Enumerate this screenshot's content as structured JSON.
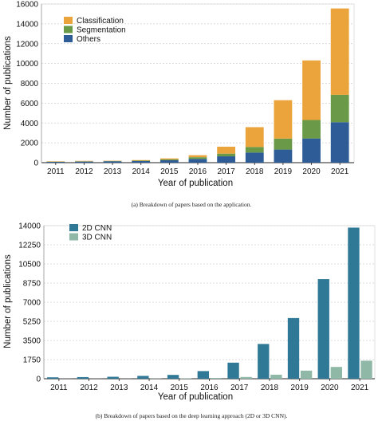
{
  "chart_data": [
    {
      "type": "bar",
      "stacked": true,
      "categories": [
        "2011",
        "2012",
        "2013",
        "2014",
        "2015",
        "2016",
        "2017",
        "2018",
        "2019",
        "2020",
        "2021"
      ],
      "series": [
        {
          "name": "Others",
          "color": "#2d5c96",
          "values": [
            80,
            110,
            140,
            160,
            240,
            380,
            640,
            1020,
            1320,
            2440,
            4080
          ]
        },
        {
          "name": "Segmentation",
          "color": "#6a9a48",
          "values": [
            20,
            25,
            30,
            40,
            90,
            170,
            270,
            560,
            1110,
            1860,
            2760
          ]
        },
        {
          "name": "Classification",
          "color": "#eba33c",
          "values": [
            40,
            45,
            30,
            60,
            100,
            200,
            700,
            2000,
            3870,
            6010,
            8710
          ]
        }
      ],
      "xlabel": "Year of publication",
      "ylabel": "Number of publications",
      "yticks": [
        0,
        2000,
        4000,
        6000,
        8000,
        10000,
        12000,
        14000,
        16000
      ],
      "ylim": [
        0,
        16000
      ],
      "grid": true,
      "legend": "top-left",
      "legend_order": [
        "Classification",
        "Segmentation",
        "Others"
      ],
      "caption": "(a) Breakdown of papers based on the application."
    },
    {
      "type": "bar",
      "stacked": false,
      "categories": [
        "2011",
        "2012",
        "2013",
        "2014",
        "2015",
        "2016",
        "2017",
        "2018",
        "2019",
        "2020",
        "2021"
      ],
      "series": [
        {
          "name": "2D CNN",
          "color": "#2f7896",
          "values": [
            130,
            150,
            180,
            260,
            350,
            700,
            1470,
            3180,
            5550,
            9110,
            13820
          ]
        },
        {
          "name": "3D CNN",
          "color": "#8fb8a6",
          "values": [
            10,
            10,
            10,
            20,
            30,
            70,
            160,
            370,
            740,
            1080,
            1650
          ]
        }
      ],
      "xlabel": "Year of publication",
      "ylabel": "Number of publications",
      "yticks": [
        0,
        1750,
        3500,
        5250,
        7000,
        8750,
        10500,
        12250,
        14000
      ],
      "ylim": [
        0,
        14000
      ],
      "grid": true,
      "legend": "top-left",
      "caption": "(b) Breakdown of papers based on the deep learning approach (2D or 3D CNN)."
    }
  ]
}
